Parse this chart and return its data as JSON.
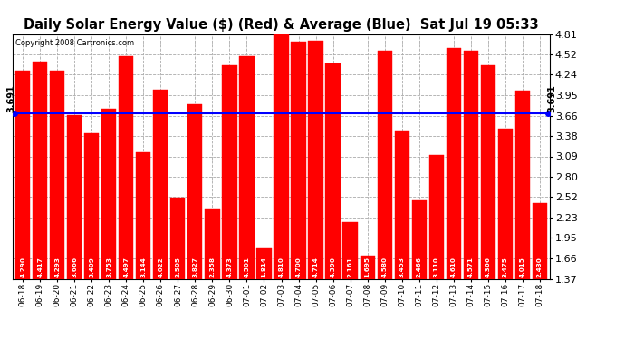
{
  "title": "Daily Solar Energy Value ($) (Red) & Average (Blue)  Sat Jul 19 05:33",
  "copyright": "Copyright 2008 Cartronics.com",
  "average": 3.691,
  "bar_color": "#FF0000",
  "average_color": "#0000FF",
  "background_color": "#FFFFFF",
  "plot_bg_color": "#FFFFFF",
  "grid_color": "#AAAAAA",
  "categories": [
    "06-18",
    "06-19",
    "06-20",
    "06-21",
    "06-22",
    "06-23",
    "06-24",
    "06-25",
    "06-26",
    "06-27",
    "06-28",
    "06-29",
    "06-30",
    "07-01",
    "07-02",
    "07-03",
    "07-04",
    "07-05",
    "07-06",
    "07-07",
    "07-08",
    "07-09",
    "07-10",
    "07-11",
    "07-12",
    "07-13",
    "07-14",
    "07-15",
    "07-16",
    "07-17",
    "07-18"
  ],
  "values": [
    4.29,
    4.417,
    4.293,
    3.666,
    3.409,
    3.753,
    4.497,
    3.144,
    4.022,
    2.505,
    3.827,
    2.358,
    4.373,
    4.501,
    1.814,
    4.81,
    4.7,
    4.714,
    4.39,
    2.161,
    1.695,
    4.58,
    3.453,
    2.466,
    3.11,
    4.61,
    4.571,
    4.366,
    3.475,
    4.015,
    2.43
  ],
  "ymin": 1.37,
  "ymax": 4.81,
  "yticks": [
    1.37,
    1.66,
    1.95,
    2.23,
    2.52,
    2.8,
    3.09,
    3.38,
    3.66,
    3.95,
    4.24,
    4.52,
    4.81
  ],
  "ylabel_fontsize": 8,
  "xlabel_fontsize": 6.5,
  "title_fontsize": 10.5,
  "bar_width": 0.85
}
